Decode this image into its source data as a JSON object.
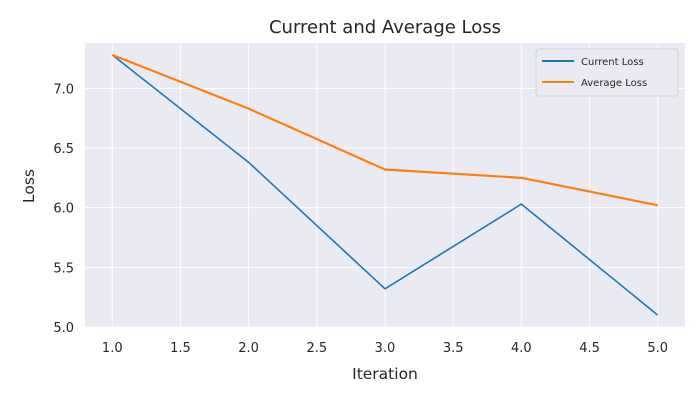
{
  "chart_data": {
    "type": "line",
    "title": "Current and Average Loss",
    "xlabel": "Iteration",
    "ylabel": "Loss",
    "x": [
      1.0,
      2.0,
      3.0,
      4.0,
      5.0
    ],
    "series": [
      {
        "name": "Current Loss",
        "values": [
          7.28,
          6.38,
          5.32,
          6.03,
          5.1
        ],
        "color": "#1f77b4"
      },
      {
        "name": "Average Loss",
        "values": [
          7.28,
          6.83,
          6.32,
          6.25,
          6.02
        ],
        "color": "#ff7f0e"
      }
    ],
    "xlim": [
      0.8,
      5.2
    ],
    "ylim": [
      5.0,
      7.38
    ],
    "xticks": [
      "1.0",
      "1.5",
      "2.0",
      "2.5",
      "3.0",
      "3.5",
      "4.0",
      "4.5",
      "5.0"
    ],
    "yticks": [
      "5.0",
      "5.5",
      "6.0",
      "6.5",
      "7.0"
    ],
    "grid": true,
    "legend_position": "top-right",
    "background_color": "#eaeaf2",
    "grid_color": "#ffffff"
  }
}
